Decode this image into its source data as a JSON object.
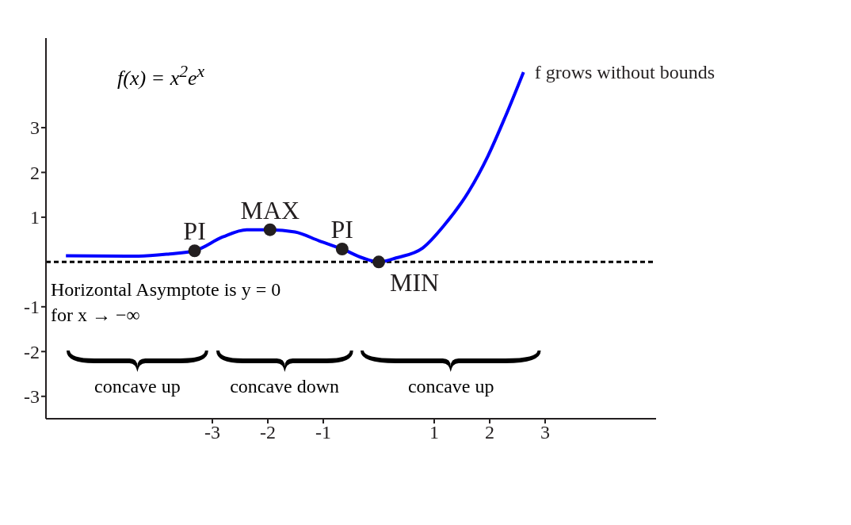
{
  "chart_data": {
    "type": "line",
    "series": [
      {
        "color": "#0000ff",
        "marker": "none",
        "x": [
          -5.64,
          -4.33,
          -3.77,
          -3.32,
          -2.81,
          -2.38,
          -1.96,
          -1.51,
          -1.07,
          -0.66,
          -0.29,
          0,
          0.31,
          0.79,
          1.18,
          1.62,
          1.97,
          2.27,
          2.61
        ],
        "values": [
          0.14,
          0.13,
          0.18,
          0.25,
          0.56,
          0.72,
          0.72,
          0.67,
          0.47,
          0.29,
          0.09,
          0,
          0.09,
          0.31,
          0.82,
          1.57,
          2.37,
          3.21,
          4.24
        ]
      },
      {
        "type": "scatter",
        "color": "#231f20",
        "marker": "circle",
        "x": [
          -3.32,
          -1.96,
          -0.66,
          0
        ],
        "values": [
          0.25,
          0.72,
          0.29,
          0
        ]
      }
    ],
    "xlim": [
      -6,
      5
    ],
    "xticks": [
      -3,
      -2,
      -1,
      1,
      2,
      3
    ],
    "ylim": [
      -3.5,
      5
    ],
    "yticks": [
      -3,
      -2,
      -1,
      1,
      2,
      3
    ],
    "ref_lines": [
      {
        "axis": "y",
        "value": 0,
        "color": "#000000",
        "line_style": "dashed"
      }
    ],
    "annotations": [
      {
        "text": "PI",
        "x": -3.32,
        "y": 0.25
      },
      {
        "text": "MAX",
        "x": -1.96,
        "y": 0.72
      },
      {
        "text": "PI",
        "x": -0.66,
        "y": 0.29
      },
      {
        "text": "MIN",
        "x": 0,
        "y": 0
      },
      {
        "text": "f grows without bounds",
        "x": 2.61,
        "y": 4.24
      },
      "f(x) = x$^{2}$e$^{x}$",
      "Horizontal Asymptote is y = 0 for x → −∞",
      "concave up",
      "concave down",
      "concave up"
    ]
  }
}
